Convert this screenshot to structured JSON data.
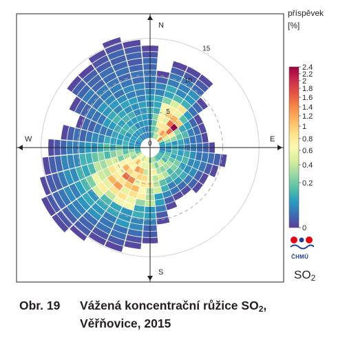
{
  "chart_data": {
    "type": "heatmap",
    "subtype": "polar-wind-rose",
    "pollutant_main": "SO",
    "pollutant_sub": "2",
    "directions": [
      "N",
      "E",
      "S",
      "W"
    ],
    "radial_ticks": [
      "0",
      "5",
      "10",
      "15"
    ],
    "radial_values": [
      0,
      5,
      10,
      15
    ],
    "radial_max": 18,
    "inner_hole_radius": 1.3,
    "radial_bin": 0.85,
    "sectors": 36,
    "colorbar": {
      "title_line1": "příspěvek",
      "title_line2": "[%]",
      "tick_labels": [
        "2.4",
        "2.2",
        "2",
        "1.8",
        "1.6",
        "1.4",
        "1.2",
        "1",
        "0.8",
        "0.6",
        "0.4",
        "0.2",
        "0"
      ],
      "tick_values": [
        2.4,
        2.2,
        2.0,
        1.8,
        1.6,
        1.4,
        1.2,
        1.0,
        0.8,
        0.6,
        0.4,
        0.2,
        0
      ],
      "colors": [
        "#5e3c99",
        "#3b6fb6",
        "#2b9ec0",
        "#5ac2a5",
        "#9cd9a4",
        "#d8ef9b",
        "#fbf8b0",
        "#fde28a",
        "#fdb95f",
        "#f68a4a",
        "#e6553f",
        "#cc2c4c",
        "#9e0142"
      ]
    },
    "sector_extent": [
      14,
      11,
      12,
      12,
      12,
      10,
      8,
      8,
      8,
      9,
      11,
      10,
      9,
      9,
      8,
      8,
      9,
      11,
      13,
      14,
      15,
      15,
      16,
      17,
      17,
      16,
      15,
      14,
      12,
      11,
      12,
      14,
      14,
      15,
      16,
      15
    ],
    "sector_intensity": [
      0.45,
      0.7,
      1.3,
      1.5,
      1.8,
      2.3,
      1.2,
      0.8,
      0.5,
      0.45,
      0.5,
      0.6,
      0.7,
      0.8,
      0.9,
      0.95,
      1.0,
      1.2,
      1.25,
      1.4,
      1.6,
      1.7,
      1.75,
      1.55,
      1.3,
      1.0,
      0.8,
      0.6,
      0.5,
      0.45,
      0.5,
      0.55,
      0.5,
      0.45,
      0.4,
      0.4
    ]
  },
  "caption": {
    "number": "Obr. 19",
    "title_part1": "Vážená koncentrační růžice SO",
    "title_sub": "2",
    "title_part2": ",",
    "line2": "Věřňovice, 2015"
  },
  "logo": {
    "text": "ČHMÚ",
    "colors": [
      "#e30613",
      "#1f3f8f"
    ]
  }
}
